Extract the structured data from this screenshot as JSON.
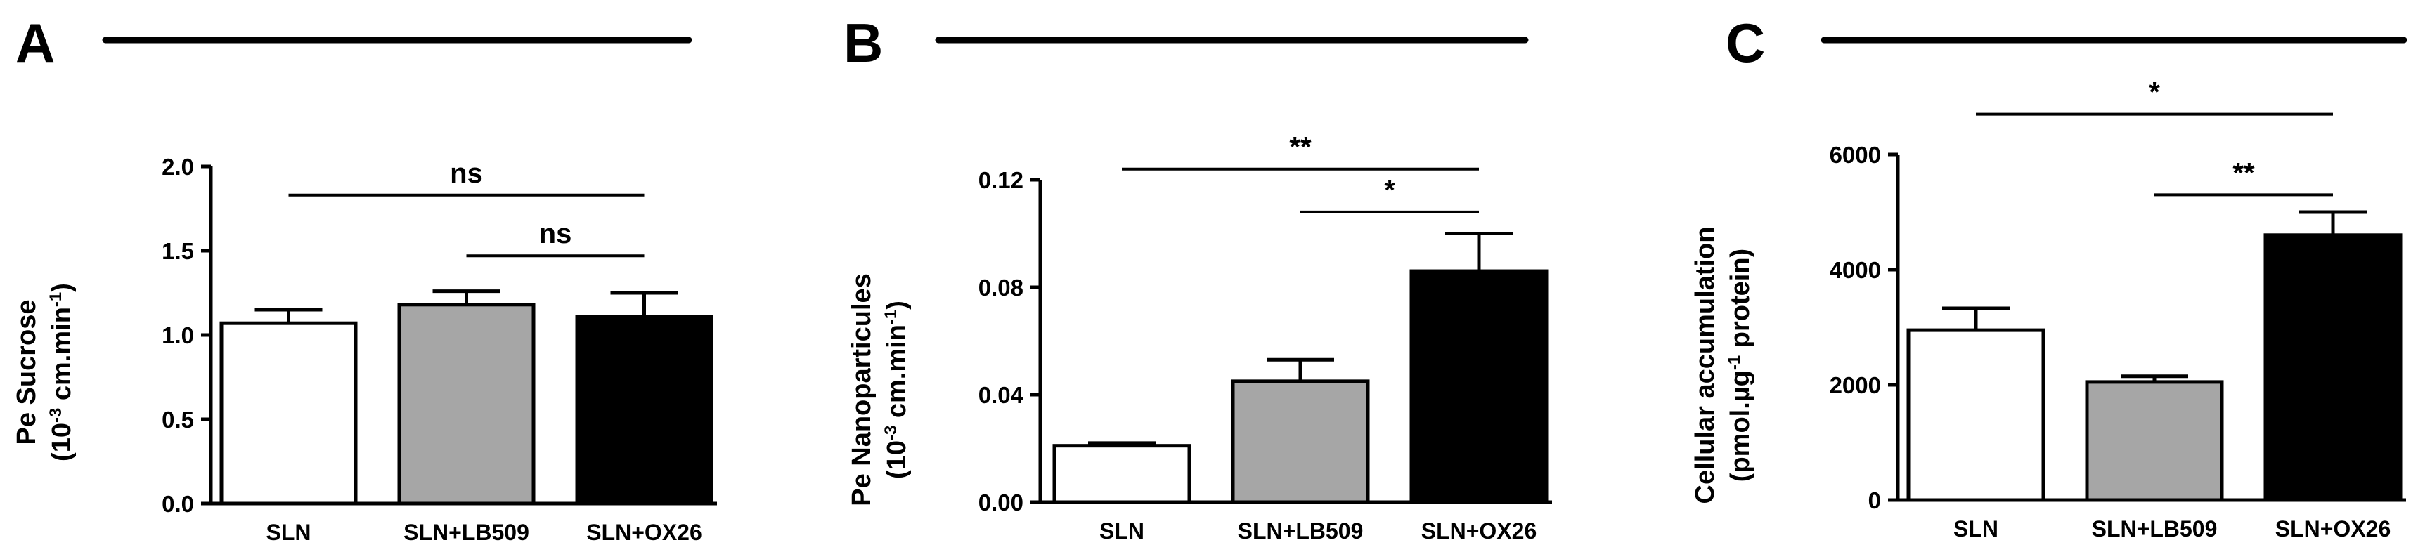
{
  "chart_data": [
    {
      "type": "bar",
      "panel": "A",
      "ylabel_line1": "Pe Sucrose",
      "ylabel_line2": "(10⁻³ cm.min⁻¹)",
      "categories": [
        "SLN",
        "SLN+LB509",
        "SLN+OX26"
      ],
      "values": [
        1.07,
        1.18,
        1.11
      ],
      "errors": [
        0.08,
        0.08,
        0.14
      ],
      "fills": [
        "#ffffff",
        "#a6a6a6",
        "#000000"
      ],
      "ylim": [
        0,
        2.0
      ],
      "yticks": [
        "0.0",
        "0.5",
        "1.0",
        "1.5",
        "2.0"
      ],
      "ytick_values": [
        0,
        0.5,
        1.0,
        1.5,
        2.0
      ],
      "significance": [
        {
          "from": 0,
          "to": 2,
          "label": "ns",
          "y": 1.83
        },
        {
          "from": 1,
          "to": 2,
          "label": "ns",
          "y": 1.47
        }
      ]
    },
    {
      "type": "bar",
      "panel": "B",
      "ylabel_line1": "Pe Nanoparticules",
      "ylabel_line2": "(10⁻³ cm.min⁻¹)",
      "categories": [
        "SLN",
        "SLN+LB509",
        "SLN+OX26"
      ],
      "values": [
        0.021,
        0.045,
        0.086
      ],
      "errors": [
        0.001,
        0.008,
        0.014
      ],
      "fills": [
        "#ffffff",
        "#a6a6a6",
        "#000000"
      ],
      "ylim": [
        0,
        0.12
      ],
      "yticks": [
        "0.00",
        "0.04",
        "0.08",
        "0.12"
      ],
      "ytick_values": [
        0,
        0.04,
        0.08,
        0.12
      ],
      "significance": [
        {
          "from": 0,
          "to": 2,
          "label": "**",
          "y": 0.124
        },
        {
          "from": 1,
          "to": 2,
          "label": "*",
          "y": 0.108
        }
      ]
    },
    {
      "type": "bar",
      "panel": "C",
      "ylabel_line1": "Cellular accumulation",
      "ylabel_line2": "(pmol.µg⁻¹ protein)",
      "categories": [
        "SLN",
        "SLN+LB509",
        "SLN+OX26"
      ],
      "values": [
        2950,
        2050,
        4600
      ],
      "errors": [
        380,
        100,
        400
      ],
      "fills": [
        "#ffffff",
        "#a6a6a6",
        "#000000"
      ],
      "ylim": [
        0,
        6000
      ],
      "yticks": [
        "0",
        "2000",
        "4000",
        "6000"
      ],
      "ytick_values": [
        0,
        2000,
        4000,
        6000
      ],
      "significance": [
        {
          "from": 0,
          "to": 2,
          "label": "*",
          "y": 6700
        },
        {
          "from": 1,
          "to": 2,
          "label": "**",
          "y": 5300
        }
      ]
    }
  ]
}
